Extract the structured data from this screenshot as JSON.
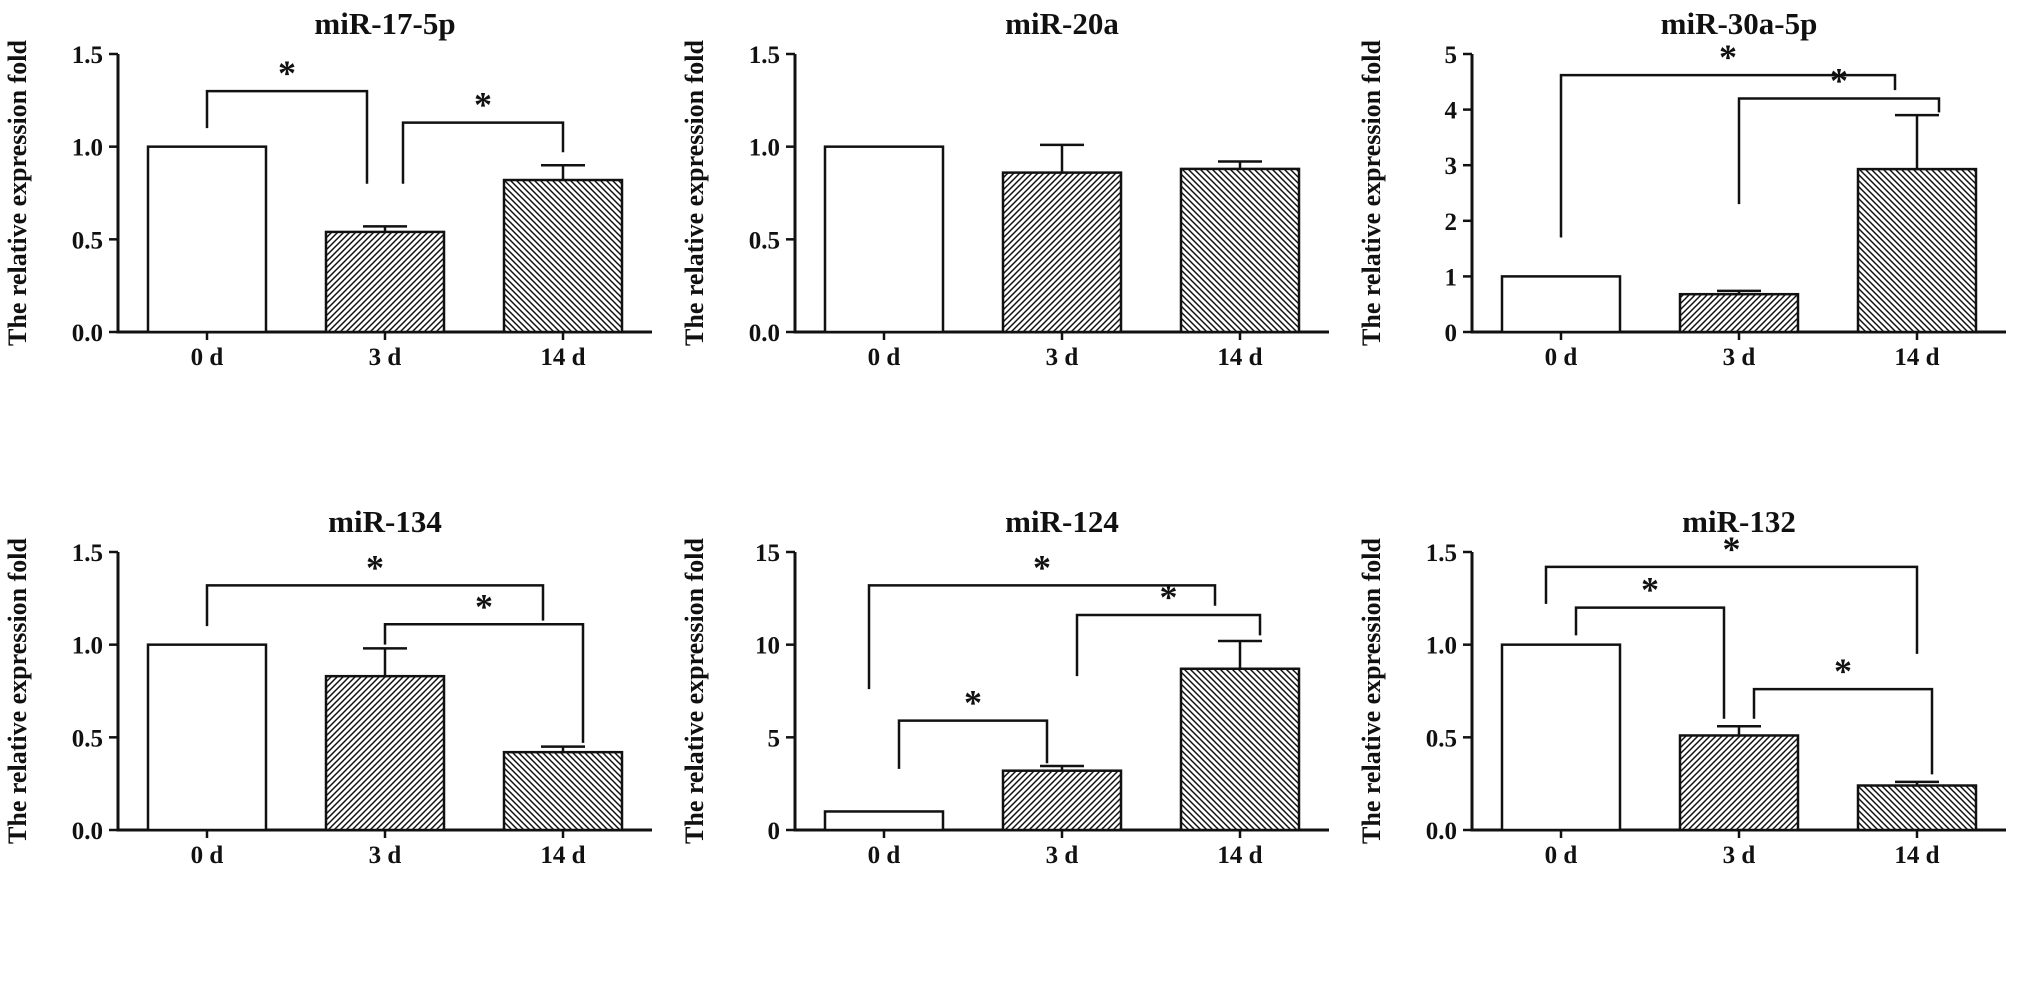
{
  "figure": {
    "background": "#ffffff",
    "ink_color": "#111111",
    "ylabel": "The relative expression fold",
    "categories": [
      "0 d",
      "3 d",
      "14 d"
    ],
    "bar_styles": [
      "open",
      "hatch-forward",
      "hatch-backward"
    ],
    "sig_symbol": "*"
  },
  "chart_data": [
    {
      "type": "bar",
      "title": "miR-17-5p",
      "xlabel": "",
      "ylabel": "The relative expression fold",
      "categories": [
        "0 d",
        "3 d",
        "14 d"
      ],
      "values": [
        1.0,
        0.54,
        0.82
      ],
      "errors": [
        0,
        0.03,
        0.08
      ],
      "ylim": [
        0,
        1.5
      ],
      "yticks": [
        "0.0",
        "0.5",
        "1.0",
        "1.5"
      ],
      "grid": false,
      "legend": "none",
      "significance": [
        {
          "pair": [
            "0 d",
            "3 d"
          ],
          "label": "*",
          "y": 1.3,
          "drop_a": 1.1,
          "drop_b": 0.8,
          "oa": 0,
          "ob": -18
        },
        {
          "pair": [
            "3 d",
            "14 d"
          ],
          "label": "*",
          "y": 1.13,
          "drop_a": 0.8,
          "drop_b": 0.97,
          "oa": 18,
          "ob": 0
        }
      ]
    },
    {
      "type": "bar",
      "title": "miR-20a",
      "xlabel": "",
      "ylabel": "The relative expression fold",
      "categories": [
        "0 d",
        "3 d",
        "14 d"
      ],
      "values": [
        1.0,
        0.86,
        0.88
      ],
      "errors": [
        0,
        0.15,
        0.04
      ],
      "ylim": [
        0,
        1.5
      ],
      "yticks": [
        "0.0",
        "0.5",
        "1.0",
        "1.5"
      ],
      "grid": false,
      "legend": "none",
      "significance": []
    },
    {
      "type": "bar",
      "title": "miR-30a-5p",
      "xlabel": "",
      "ylabel": "The relative expression fold",
      "categories": [
        "0 d",
        "3 d",
        "14 d"
      ],
      "values": [
        1.0,
        0.68,
        2.93
      ],
      "errors": [
        0,
        0.06,
        0.97
      ],
      "ylim": [
        0,
        5
      ],
      "yticks": [
        "0",
        "1",
        "2",
        "3",
        "4",
        "5"
      ],
      "grid": false,
      "legend": "none",
      "significance": [
        {
          "pair": [
            "0 d",
            "14 d"
          ],
          "label": "*",
          "y": 4.62,
          "drop_a": 1.7,
          "drop_b": 4.35,
          "oa": 0,
          "ob": -22
        },
        {
          "pair": [
            "3 d",
            "14 d"
          ],
          "label": "*",
          "y": 4.2,
          "drop_a": 2.3,
          "drop_b": 3.95,
          "oa": 0,
          "ob": 22
        }
      ]
    },
    {
      "type": "bar",
      "title": "miR-134",
      "xlabel": "",
      "ylabel": "The relative expression fold",
      "categories": [
        "0 d",
        "3 d",
        "14 d"
      ],
      "values": [
        1.0,
        0.83,
        0.42
      ],
      "errors": [
        0,
        0.15,
        0.03
      ],
      "ylim": [
        0,
        1.5
      ],
      "yticks": [
        "0.0",
        "0.5",
        "1.0",
        "1.5"
      ],
      "grid": false,
      "legend": "none",
      "significance": [
        {
          "pair": [
            "0 d",
            "14 d"
          ],
          "label": "*",
          "y": 1.32,
          "drop_a": 1.1,
          "drop_b": 1.13,
          "oa": 0,
          "ob": -20
        },
        {
          "pair": [
            "3 d",
            "14 d"
          ],
          "label": "*",
          "y": 1.11,
          "drop_a": 1.0,
          "drop_b": 0.47,
          "oa": 0,
          "ob": 20
        }
      ]
    },
    {
      "type": "bar",
      "title": "miR-124",
      "xlabel": "",
      "ylabel": "The relative expression fold",
      "categories": [
        "0 d",
        "3 d",
        "14 d"
      ],
      "values": [
        1.0,
        3.2,
        8.7
      ],
      "errors": [
        0,
        0.25,
        1.5
      ],
      "ylim": [
        0,
        15
      ],
      "yticks": [
        "0",
        "5",
        "10",
        "15"
      ],
      "grid": false,
      "legend": "none",
      "significance": [
        {
          "pair": [
            "0 d",
            "14 d"
          ],
          "label": "*",
          "y": 13.2,
          "drop_a": 7.6,
          "drop_b": 12.1,
          "oa": -15,
          "ob": -25
        },
        {
          "pair": [
            "3 d",
            "14 d"
          ],
          "label": "*",
          "y": 11.6,
          "drop_a": 8.3,
          "drop_b": 10.5,
          "oa": 15,
          "ob": 20
        },
        {
          "pair": [
            "0 d",
            "3 d"
          ],
          "label": "*",
          "y": 5.9,
          "drop_a": 3.3,
          "drop_b": 3.6,
          "oa": 15,
          "ob": -15
        }
      ]
    },
    {
      "type": "bar",
      "title": "miR-132",
      "xlabel": "",
      "ylabel": "The relative expression fold",
      "categories": [
        "0 d",
        "3 d",
        "14 d"
      ],
      "values": [
        1.0,
        0.51,
        0.24
      ],
      "errors": [
        0,
        0.05,
        0.02
      ],
      "ylim": [
        0,
        1.5
      ],
      "yticks": [
        "0.0",
        "0.5",
        "1.0",
        "1.5"
      ],
      "grid": false,
      "legend": "none",
      "significance": [
        {
          "pair": [
            "0 d",
            "14 d"
          ],
          "label": "*",
          "y": 1.42,
          "drop_a": 1.22,
          "drop_b": 0.95,
          "oa": -15,
          "ob": 0
        },
        {
          "pair": [
            "0 d",
            "3 d"
          ],
          "label": "*",
          "y": 1.2,
          "drop_a": 1.05,
          "drop_b": 0.6,
          "oa": 15,
          "ob": -15
        },
        {
          "pair": [
            "3 d",
            "14 d"
          ],
          "label": "*",
          "y": 0.76,
          "drop_a": 0.6,
          "drop_b": 0.3,
          "oa": 15,
          "ob": 15
        }
      ]
    }
  ]
}
